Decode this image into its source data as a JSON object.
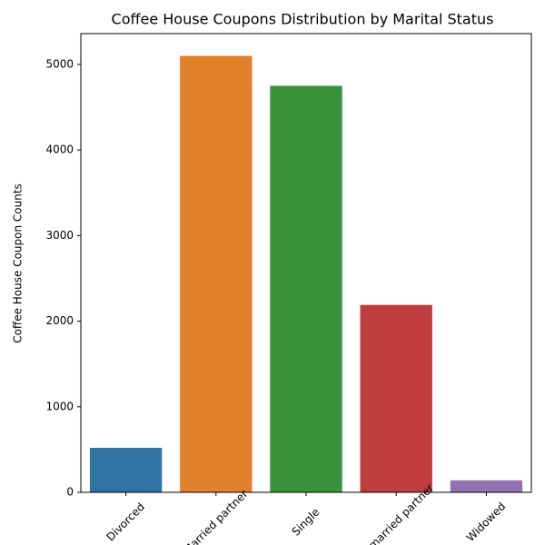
{
  "chart_data": {
    "type": "bar",
    "title": "Coffee House Coupons Distribution by Marital Status",
    "y_label": "Coffee House Coupon Counts",
    "categories": [
      "Divorced",
      "Married partner",
      "Single",
      "Unmarried partner",
      "Widowed"
    ],
    "values": [
      520,
      5100,
      4750,
      2190,
      140
    ],
    "colors": [
      "#3274a1",
      "#e1812c",
      "#3a923a",
      "#c03d3e",
      "#9372b2"
    ],
    "ylim": [
      0,
      5360
    ],
    "yticks": [
      0,
      1000,
      2000,
      3000,
      4000,
      5000
    ],
    "grid": false
  }
}
